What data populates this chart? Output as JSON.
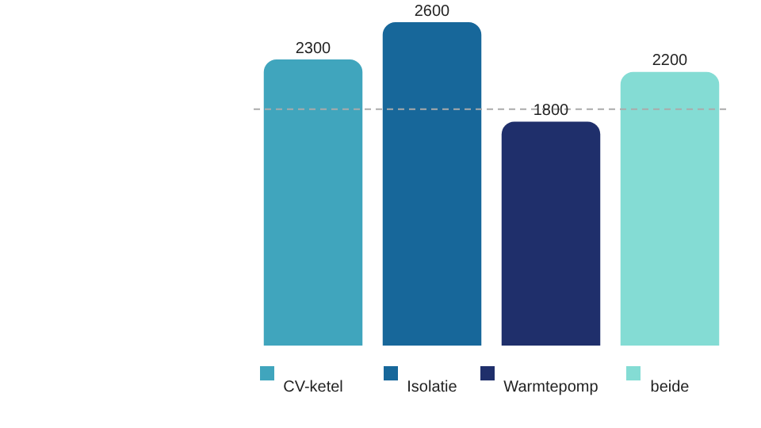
{
  "chart_data": {
    "type": "bar",
    "categories": [
      "CV-ketel",
      "Isolatie",
      "Warmtepomp",
      "beide"
    ],
    "values": [
      2300,
      2600,
      1800,
      2200
    ],
    "colors": [
      "#40a5bd",
      "#17679a",
      "#1f2f6b",
      "#84dcd4"
    ],
    "data_labels": true,
    "tick_labels": "x",
    "ref_lines": [
      {
        "axis": "y",
        "value": 1900,
        "color": "#aaaaaa",
        "line_style": "dashed"
      }
    ]
  }
}
